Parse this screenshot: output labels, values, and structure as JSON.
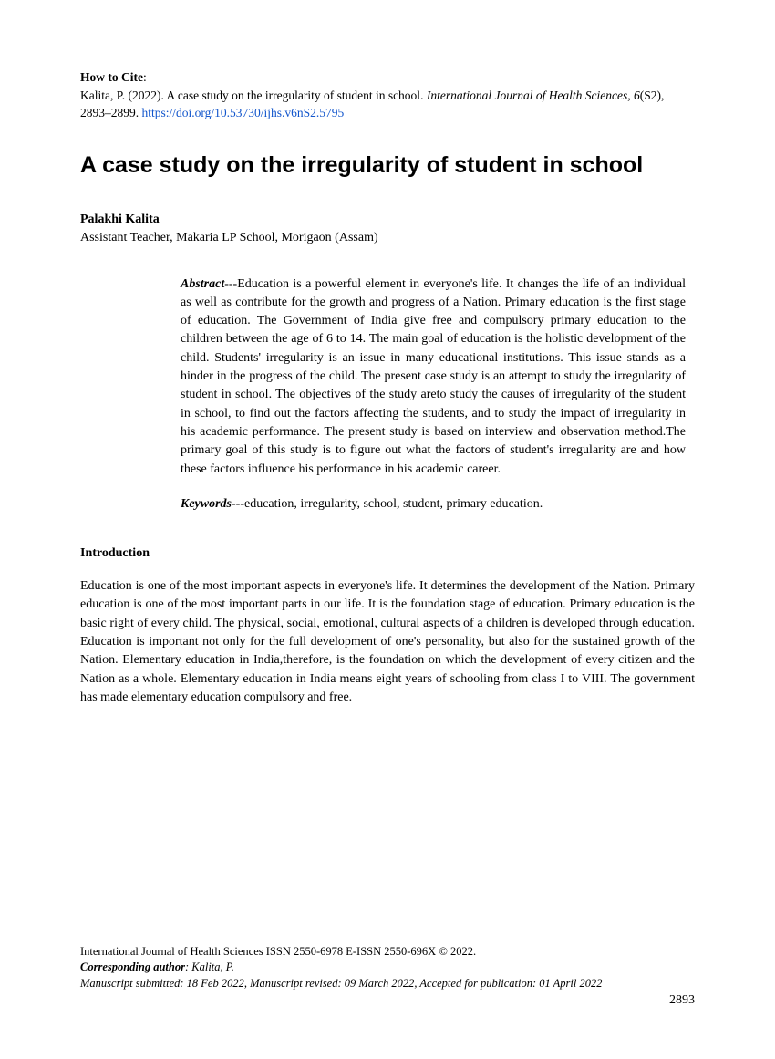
{
  "cite": {
    "label": "How to Cite",
    "text_prefix": "Kalita, P. (2022). A case study on the irregularity of student in school. ",
    "journal_italic": "International Journal of Health Sciences, 6",
    "issue_pages": "(S2), 2893–2899. ",
    "doi_url": "https://doi.org/10.53730/ijhs.v6nS2.5795"
  },
  "title": "A case study on the irregularity of student in school",
  "author": {
    "name": "Palakhi Kalita",
    "affiliation": "Assistant Teacher, Makaria LP School, Morigaon (Assam)"
  },
  "abstract": {
    "label": "Abstract",
    "text": "---Education is a powerful element in everyone's life. It changes the life of an individual as well as contribute for the growth and progress of a Nation. Primary education is the first stage of education. The Government of India give free and compulsory primary education to the children between the age of 6 to 14. The main goal of education is the holistic development of the child. Students' irregularity is an issue in many educational institutions. This issue stands as a hinder in the progress of the child. The present case study is an attempt to study the irregularity of student in school. The objectives of the study areto study the causes of irregularity of the student in school, to find out the factors affecting the students, and to study the impact of irregularity in his academic performance. The present study is based on interview and observation method.The primary goal of this study is to figure out what the factors of student's irregularity are and how these factors influence his performance in his academic career."
  },
  "keywords": {
    "label": "Keywords",
    "text": "---education, irregularity, school, student, primary education."
  },
  "section": {
    "introduction_head": "Introduction",
    "introduction_body": "Education is one of the most important aspects in everyone's life. It determines the development of the Nation.  Primary education is one of the most important parts in our life. It is the foundation stage of education. Primary education is the basic right of every child. The physical, social, emotional, cultural aspects of a children is developed through education. Education is important not only for the full development of one's personality, but also for the sustained growth of the Nation. Elementary education in India,therefore, is the foundation on which the development of every citizen and the Nation as a whole. Elementary education in India means eight years of schooling from class I to VIII. The government has made elementary education compulsory and free."
  },
  "footer": {
    "journal_line": "International Journal of Health Sciences ISSN 2550-6978 E-ISSN 2550-696X © 2022.",
    "corr_label": "Corresponding author",
    "corr_value": ": Kalita, P.",
    "manuscript_line": "Manuscript submitted: 18 Feb 2022, Manuscript revised: 09 March 2022, Accepted for publication: 01 April 2022",
    "page_number": "2893"
  }
}
